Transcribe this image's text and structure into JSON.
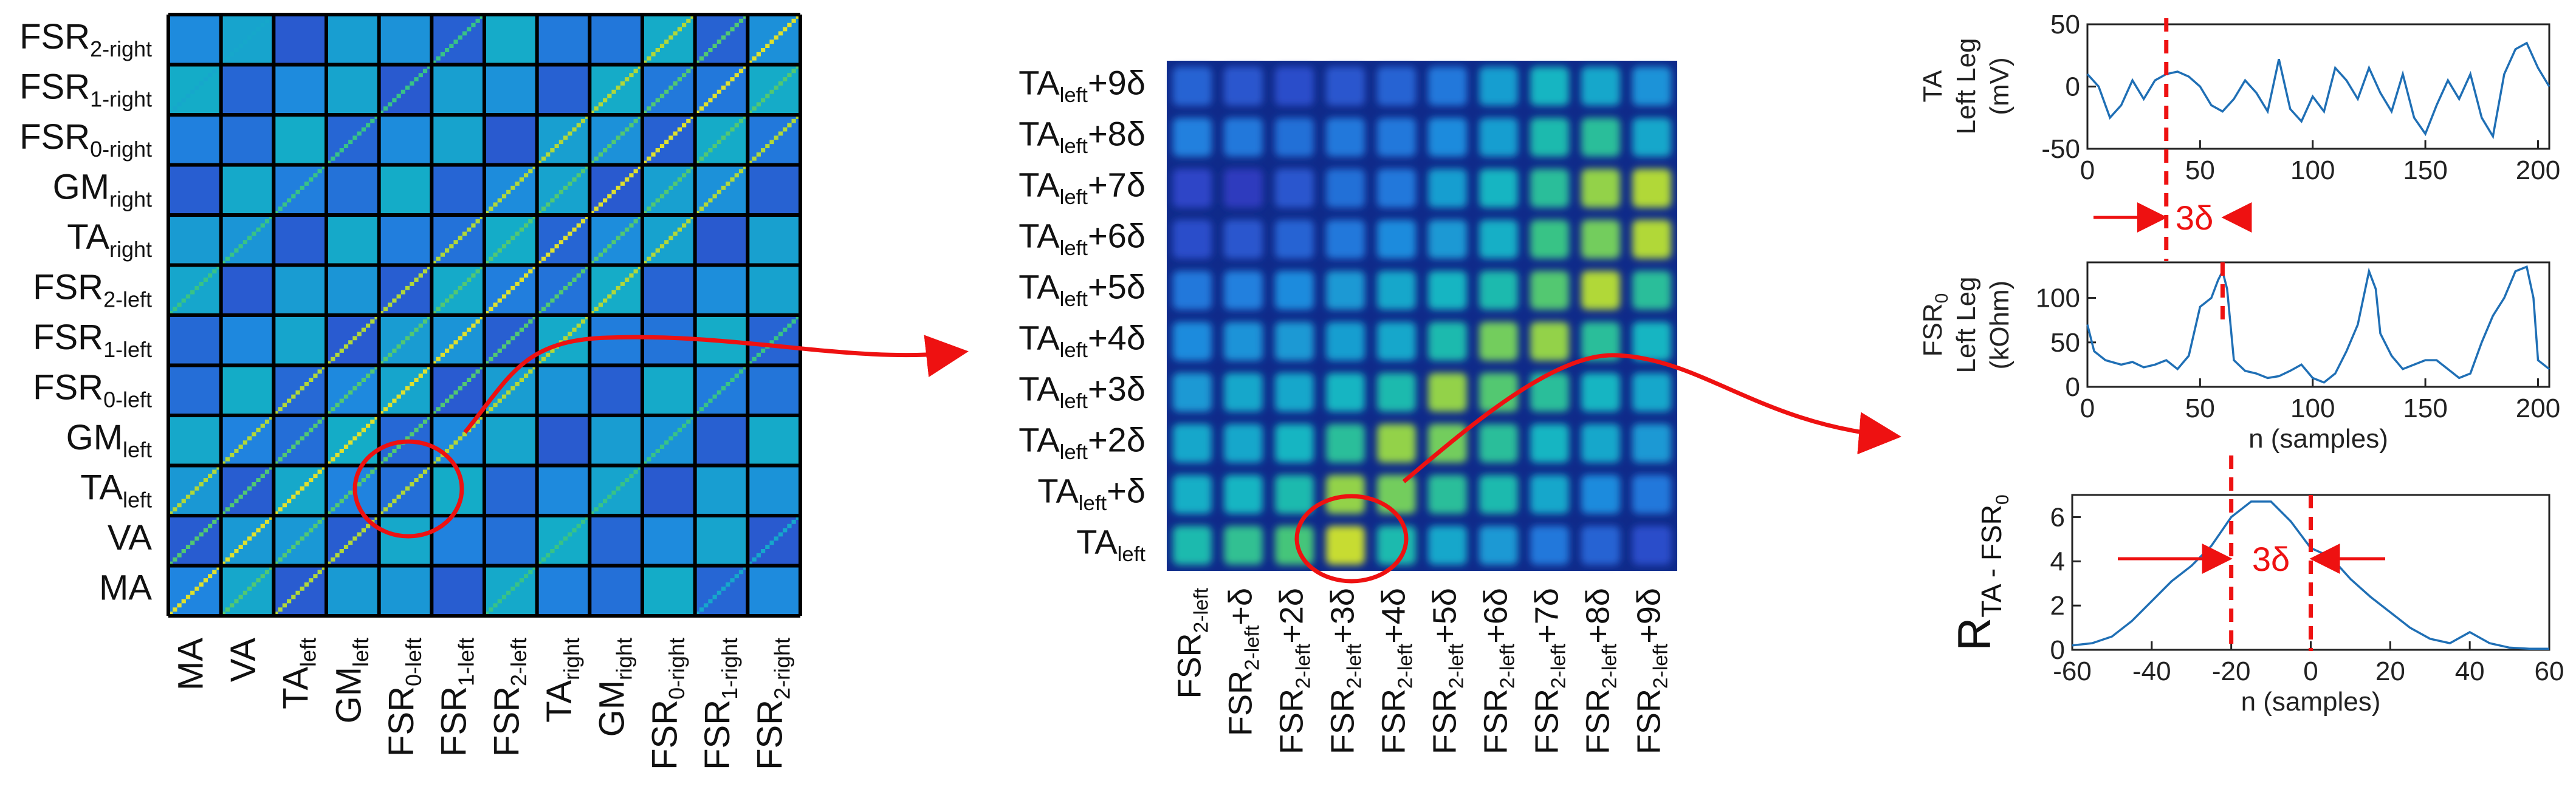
{
  "colors": {
    "annotation": "#ee1111",
    "trace": "#1f6fb5",
    "frame": "#000000",
    "colormap": [
      "#2a0d7a",
      "#2f3fc5",
      "#1f86e0",
      "#12b5c2",
      "#3cc47f",
      "#a9d63b",
      "#f5e628"
    ]
  },
  "panel_a": {
    "row_labels": [
      {
        "base": "FSR",
        "sub": "2-right"
      },
      {
        "base": "FSR",
        "sub": "1-right"
      },
      {
        "base": "FSR",
        "sub": "0-right"
      },
      {
        "base": "GM",
        "sub": "right"
      },
      {
        "base": "TA",
        "sub": "right"
      },
      {
        "base": "FSR",
        "sub": "2-left"
      },
      {
        "base": "FSR",
        "sub": "1-left"
      },
      {
        "base": "FSR",
        "sub": "0-left"
      },
      {
        "base": "GM",
        "sub": "left"
      },
      {
        "base": "TA",
        "sub": "left"
      },
      {
        "base": "VA",
        "sub": ""
      },
      {
        "base": "MA",
        "sub": ""
      }
    ],
    "col_labels": [
      {
        "base": "MA",
        "sub": ""
      },
      {
        "base": "VA",
        "sub": ""
      },
      {
        "base": "TA",
        "sub": "left"
      },
      {
        "base": "GM",
        "sub": "left"
      },
      {
        "base": "FSR",
        "sub": "0-left"
      },
      {
        "base": "FSR",
        "sub": "1-left"
      },
      {
        "base": "FSR",
        "sub": "2-left"
      },
      {
        "base": "TA",
        "sub": "right"
      },
      {
        "base": "GM",
        "sub": "right"
      },
      {
        "base": "FSR",
        "sub": "0-right"
      },
      {
        "base": "FSR",
        "sub": "1-right"
      },
      {
        "base": "FSR",
        "sub": "2-right"
      }
    ]
  },
  "panel_b": {
    "row_labels": [
      {
        "base": "TA",
        "sub": "left",
        "suffix": "+9δ"
      },
      {
        "base": "TA",
        "sub": "left",
        "suffix": "+8δ"
      },
      {
        "base": "TA",
        "sub": "left",
        "suffix": "+7δ"
      },
      {
        "base": "TA",
        "sub": "left",
        "suffix": "+6δ"
      },
      {
        "base": "TA",
        "sub": "left",
        "suffix": "+5δ"
      },
      {
        "base": "TA",
        "sub": "left",
        "suffix": "+4δ"
      },
      {
        "base": "TA",
        "sub": "left",
        "suffix": "+3δ"
      },
      {
        "base": "TA",
        "sub": "left",
        "suffix": "+2δ"
      },
      {
        "base": "TA",
        "sub": "left",
        "suffix": "+δ"
      },
      {
        "base": "TA",
        "sub": "left",
        "suffix": ""
      }
    ],
    "col_labels": [
      {
        "base": "FSR",
        "sub": "2-left",
        "suffix": ""
      },
      {
        "base": "FSR",
        "sub": "2-left",
        "suffix": "+δ"
      },
      {
        "base": "FSR",
        "sub": "2-left",
        "suffix": "+2δ"
      },
      {
        "base": "FSR",
        "sub": "2-left",
        "suffix": "+3δ"
      },
      {
        "base": "FSR",
        "sub": "2-left",
        "suffix": "+4δ"
      },
      {
        "base": "FSR",
        "sub": "2-left",
        "suffix": "+5δ"
      },
      {
        "base": "FSR",
        "sub": "2-left",
        "suffix": "+6δ"
      },
      {
        "base": "FSR",
        "sub": "2-left",
        "suffix": "+7δ"
      },
      {
        "base": "FSR",
        "sub": "2-left",
        "suffix": "+8δ"
      },
      {
        "base": "FSR",
        "sub": "2-left",
        "suffix": "+9δ"
      }
    ],
    "values": [
      [
        0.25,
        0.22,
        0.2,
        0.22,
        0.25,
        0.3,
        0.42,
        0.5,
        0.45,
        0.38
      ],
      [
        0.32,
        0.3,
        0.28,
        0.3,
        0.3,
        0.35,
        0.42,
        0.55,
        0.6,
        0.45
      ],
      [
        0.18,
        0.15,
        0.22,
        0.28,
        0.3,
        0.42,
        0.5,
        0.6,
        0.8,
        0.85
      ],
      [
        0.2,
        0.22,
        0.25,
        0.3,
        0.35,
        0.4,
        0.48,
        0.65,
        0.75,
        0.85
      ],
      [
        0.3,
        0.32,
        0.35,
        0.4,
        0.45,
        0.5,
        0.55,
        0.7,
        0.85,
        0.6
      ],
      [
        0.35,
        0.38,
        0.4,
        0.42,
        0.45,
        0.55,
        0.75,
        0.8,
        0.6,
        0.5
      ],
      [
        0.4,
        0.45,
        0.45,
        0.5,
        0.55,
        0.8,
        0.7,
        0.6,
        0.5,
        0.45
      ],
      [
        0.45,
        0.45,
        0.5,
        0.6,
        0.8,
        0.75,
        0.6,
        0.5,
        0.45,
        0.4
      ],
      [
        0.48,
        0.5,
        0.55,
        0.8,
        0.75,
        0.6,
        0.55,
        0.45,
        0.35,
        0.3
      ],
      [
        0.55,
        0.62,
        0.68,
        0.9,
        0.55,
        0.45,
        0.4,
        0.3,
        0.25,
        0.2
      ]
    ]
  },
  "panel_c": {
    "ta_signal": {
      "ylabel_lines": [
        "TA",
        "Left Leg",
        "(mV)"
      ],
      "yticks": [
        "50",
        "0",
        "-50"
      ],
      "ylim": [
        -50,
        50
      ],
      "xticks": [
        "0",
        "50",
        "100",
        "150",
        "200"
      ],
      "xlim": [
        0,
        205
      ],
      "points": [
        [
          0,
          10
        ],
        [
          5,
          0
        ],
        [
          10,
          -25
        ],
        [
          15,
          -15
        ],
        [
          20,
          5
        ],
        [
          25,
          -10
        ],
        [
          30,
          5
        ],
        [
          35,
          10
        ],
        [
          40,
          12
        ],
        [
          45,
          8
        ],
        [
          50,
          0
        ],
        [
          55,
          -15
        ],
        [
          60,
          -20
        ],
        [
          65,
          -10
        ],
        [
          70,
          5
        ],
        [
          75,
          -5
        ],
        [
          80,
          -20
        ],
        [
          85,
          22
        ],
        [
          90,
          -18
        ],
        [
          95,
          -28
        ],
        [
          100,
          -8
        ],
        [
          105,
          -20
        ],
        [
          110,
          15
        ],
        [
          115,
          5
        ],
        [
          120,
          -10
        ],
        [
          125,
          15
        ],
        [
          130,
          -5
        ],
        [
          135,
          -20
        ],
        [
          140,
          10
        ],
        [
          145,
          -25
        ],
        [
          150,
          -38
        ],
        [
          155,
          -15
        ],
        [
          160,
          5
        ],
        [
          165,
          -10
        ],
        [
          170,
          10
        ],
        [
          175,
          -25
        ],
        [
          180,
          -40
        ],
        [
          185,
          10
        ],
        [
          190,
          30
        ],
        [
          195,
          35
        ],
        [
          200,
          15
        ],
        [
          205,
          0
        ]
      ]
    },
    "fsr_signal": {
      "ylabel_sup": "FSR",
      "ylabel_sub": "0",
      "ylabel_lines": [
        "Left Leg",
        "(kOhm)"
      ],
      "yticks": [
        "100",
        "50",
        "0"
      ],
      "ylim": [
        0,
        140
      ],
      "xticks": [
        "0",
        "50",
        "100",
        "150",
        "200"
      ],
      "xlim": [
        0,
        205
      ],
      "xlabel": "n (samples)",
      "points": [
        [
          0,
          70
        ],
        [
          3,
          40
        ],
        [
          8,
          30
        ],
        [
          15,
          25
        ],
        [
          20,
          28
        ],
        [
          25,
          22
        ],
        [
          30,
          25
        ],
        [
          35,
          30
        ],
        [
          40,
          20
        ],
        [
          45,
          35
        ],
        [
          50,
          90
        ],
        [
          55,
          100
        ],
        [
          58,
          120
        ],
        [
          60,
          130
        ],
        [
          62,
          110
        ],
        [
          65,
          30
        ],
        [
          70,
          18
        ],
        [
          75,
          15
        ],
        [
          80,
          10
        ],
        [
          85,
          12
        ],
        [
          90,
          18
        ],
        [
          95,
          25
        ],
        [
          100,
          10
        ],
        [
          105,
          5
        ],
        [
          110,
          15
        ],
        [
          115,
          40
        ],
        [
          120,
          70
        ],
        [
          125,
          130
        ],
        [
          128,
          110
        ],
        [
          130,
          60
        ],
        [
          135,
          35
        ],
        [
          140,
          20
        ],
        [
          145,
          25
        ],
        [
          150,
          30
        ],
        [
          155,
          30
        ],
        [
          160,
          20
        ],
        [
          165,
          10
        ],
        [
          170,
          15
        ],
        [
          175,
          50
        ],
        [
          180,
          80
        ],
        [
          185,
          100
        ],
        [
          190,
          130
        ],
        [
          195,
          135
        ],
        [
          198,
          100
        ],
        [
          200,
          30
        ],
        [
          205,
          20
        ]
      ]
    },
    "correlation": {
      "ylabel_base": "R",
      "ylabel_sub": "TA - FSR",
      "ylabel_subsub": "0",
      "yticks": [
        "6",
        "4",
        "2",
        "0"
      ],
      "ylim": [
        0,
        7
      ],
      "xticks": [
        "-60",
        "-40",
        "-20",
        "0",
        "20",
        "40",
        "60"
      ],
      "xlim": [
        -60,
        60
      ],
      "xlabel": "n (samples)",
      "points": [
        [
          -60,
          0.2
        ],
        [
          -55,
          0.3
        ],
        [
          -50,
          0.6
        ],
        [
          -45,
          1.3
        ],
        [
          -40,
          2.2
        ],
        [
          -35,
          3.1
        ],
        [
          -30,
          3.8
        ],
        [
          -25,
          4.7
        ],
        [
          -20,
          6.0
        ],
        [
          -15,
          6.7
        ],
        [
          -10,
          6.7
        ],
        [
          -5,
          5.8
        ],
        [
          0,
          4.6
        ],
        [
          5,
          4.2
        ],
        [
          10,
          3.2
        ],
        [
          15,
          2.4
        ],
        [
          20,
          1.7
        ],
        [
          25,
          1.0
        ],
        [
          30,
          0.5
        ],
        [
          35,
          0.3
        ],
        [
          40,
          0.8
        ],
        [
          45,
          0.3
        ],
        [
          50,
          0.1
        ],
        [
          55,
          0.05
        ],
        [
          60,
          0.05
        ]
      ]
    },
    "annotations": {
      "shift_top": "3δ",
      "shift_bottom": "3δ"
    }
  }
}
